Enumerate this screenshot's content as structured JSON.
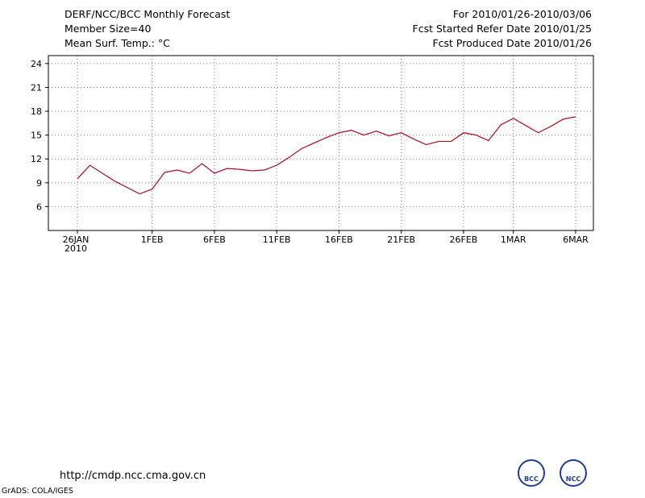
{
  "header": {
    "title": "DERF/NCC/BCC Monthly Forecast",
    "member_size": "Member Size=40",
    "variable": "Mean Surf. Temp.: °C",
    "period": "For 2010/01/26-2010/03/06",
    "fcst_started": "Fcst Started Refer Date 2010/01/25",
    "fcst_produced": "Fcst Produced Date 2010/01/26"
  },
  "footer": {
    "url": "http://cmdp.ncc.cma.gov.cn",
    "grads": "GrADS: COLA/IGES"
  },
  "logos": {
    "bcc_label": "BCC",
    "ncc_label": "NCC"
  },
  "colors": {
    "ens_range": "#0000cc",
    "spread": "#cc0000",
    "ens_mean": "#000000",
    "box": "#d3d3d6",
    "marker": "#33ee33",
    "grid": "#7a7a7a"
  },
  "chart_data": [
    {
      "type": "line",
      "title": "Mean Surf. Temp.: °C",
      "x_ticks": [
        "26JAN\n2010",
        "1FEB",
        "6FEB",
        "11FEB",
        "16FEB",
        "21FEB",
        "26FEB",
        "1MAR",
        "6MAR"
      ],
      "x_tick_days": [
        0,
        6,
        11,
        16,
        21,
        26,
        31,
        35,
        40
      ],
      "ylim": [
        3,
        25
      ],
      "yticks": [
        6,
        9,
        12,
        15,
        18,
        21,
        24
      ],
      "days": 41,
      "series": [
        {
          "name": "max",
          "values": [
            9.5,
            11.2,
            10.2,
            9.2,
            8.4,
            7.6,
            8.2,
            10.3,
            10.6,
            10.2,
            11.4,
            10.2,
            10.8,
            10.7,
            10.5,
            10.6,
            11.2,
            12.2,
            13.3,
            14.0,
            14.7,
            15.3,
            15.6,
            15.0,
            15.5,
            14.9,
            15.3,
            14.5,
            13.8,
            14.2,
            14.2,
            15.3,
            15.0,
            14.3,
            16.3,
            17.1,
            16.2,
            15.3,
            16.1,
            17.0,
            17.3
          ]
        },
        {
          "name": "spread_low",
          "values": [
            9.5,
            11.2,
            10.2,
            9.2,
            8.4,
            7.6,
            8.2,
            10.3,
            10.6,
            10.2,
            11.4,
            10.2,
            10.8,
            10.7,
            10.5,
            10.6,
            11.2,
            12.2,
            13.3,
            14.0,
            14.7,
            15.3,
            15.6,
            15.0,
            15.5,
            14.9,
            15.3,
            14.5,
            13.8,
            14.2,
            14.2,
            15.3,
            15.0,
            14.3,
            16.3,
            17.1,
            16.2,
            15.3,
            16.1,
            17.0,
            17.3
          ]
        }
      ]
    }
  ]
}
